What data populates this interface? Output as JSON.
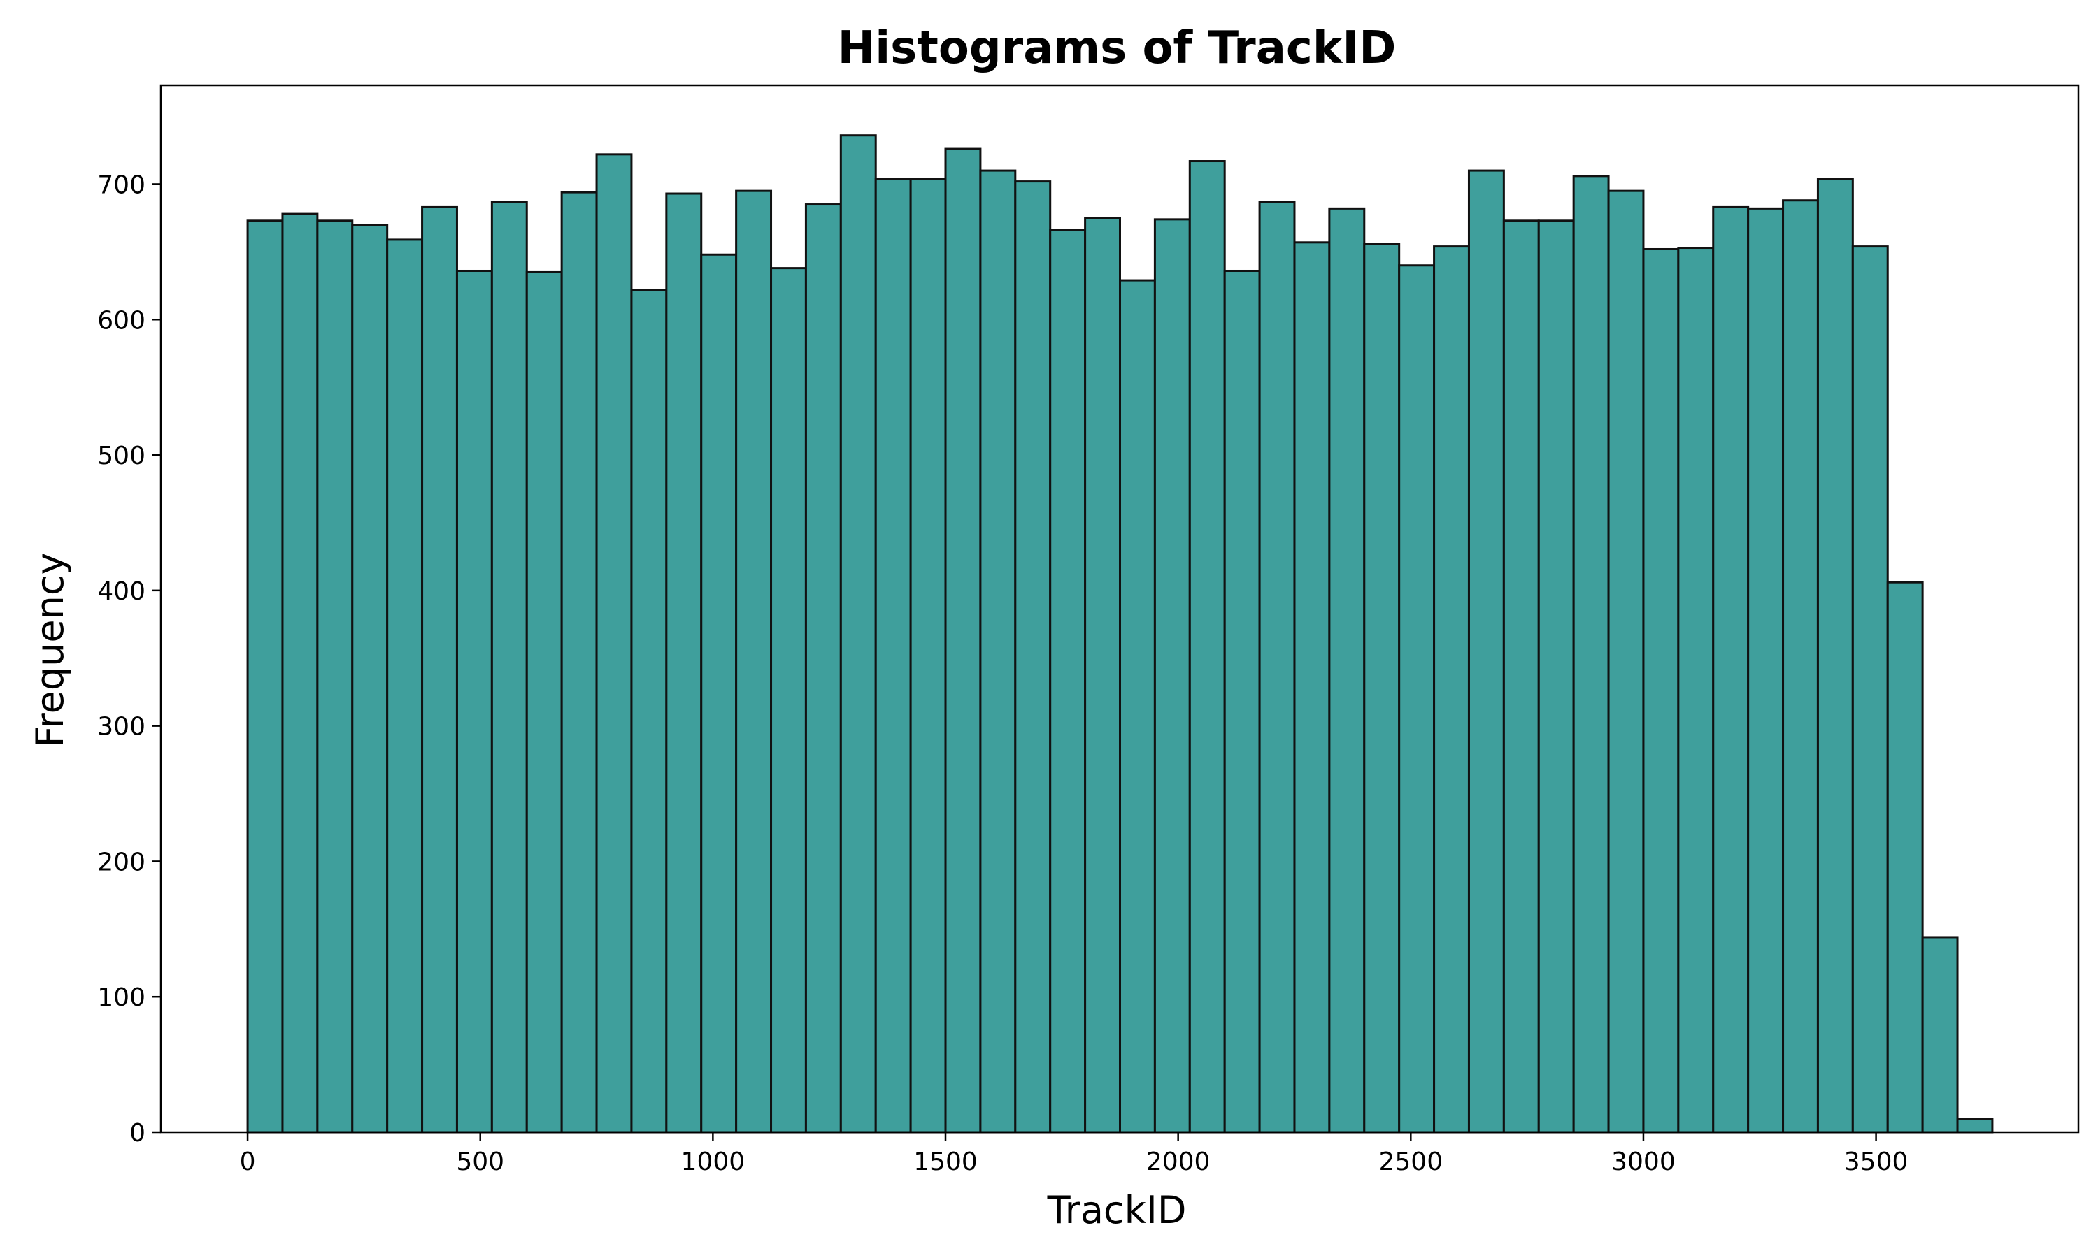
{
  "colors": {
    "bar_fill": "#3f9f9c",
    "bar_edge": "#111111",
    "axis": "#000000",
    "background": "#ffffff"
  },
  "chart_data": {
    "type": "bar",
    "title": "Histograms of TrackID",
    "xlabel": "TrackID",
    "ylabel": "Frequency",
    "grid": false,
    "legend": "none",
    "xlim": [
      -186.5,
      3935
    ],
    "ylim": [
      0,
      773
    ],
    "xticks": [
      0,
      500,
      1000,
      1500,
      2000,
      2500,
      3000,
      3500
    ],
    "yticks": [
      0,
      100,
      200,
      300,
      400,
      500,
      600,
      700
    ],
    "bin_start": 0,
    "bin_width": 75,
    "values": [
      673,
      678,
      673,
      670,
      659,
      683,
      636,
      687,
      635,
      694,
      722,
      622,
      693,
      648,
      695,
      638,
      685,
      736,
      704,
      704,
      726,
      710,
      702,
      666,
      675,
      629,
      674,
      717,
      636,
      687,
      657,
      682,
      656,
      640,
      654,
      710,
      673,
      673,
      706,
      695,
      652,
      653,
      683,
      682,
      688,
      704,
      654,
      406,
      144,
      10
    ]
  }
}
